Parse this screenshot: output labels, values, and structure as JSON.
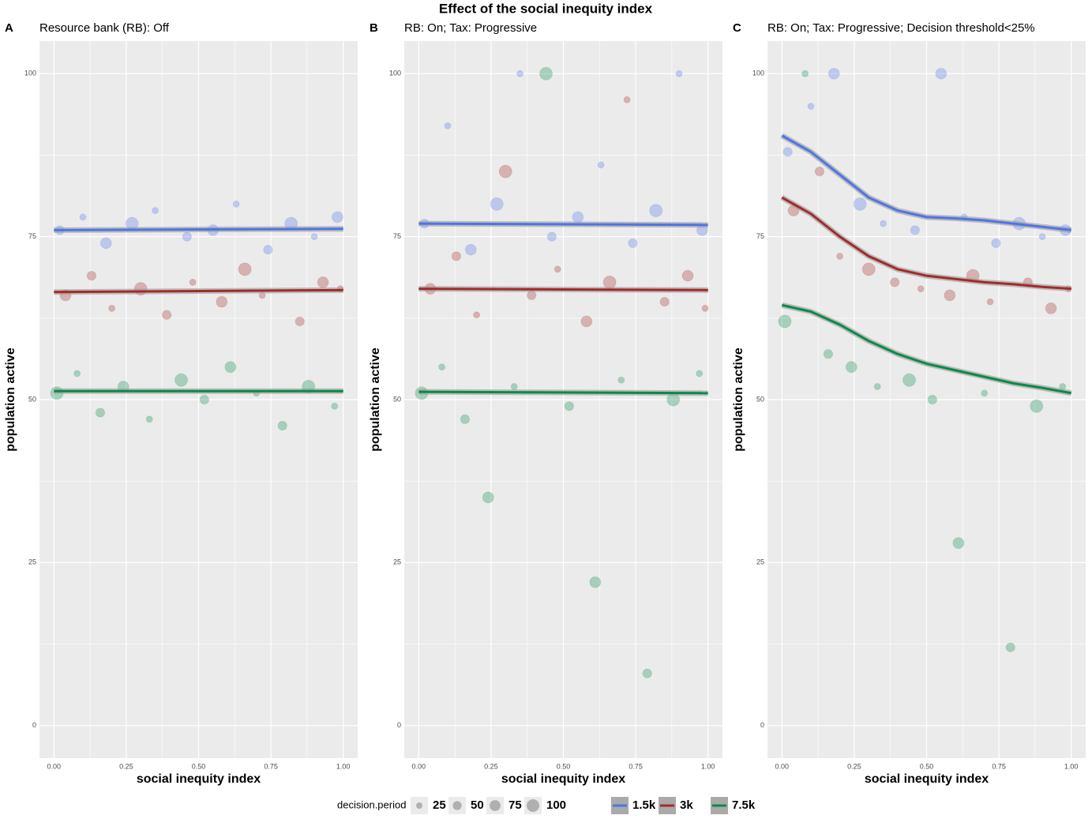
{
  "title": "Effect of the social inequity index",
  "legend": {
    "size_title": "decision.period",
    "sizes": [
      25,
      50,
      75,
      100
    ],
    "colors": [
      {
        "name": "1.5k",
        "color": "#4f74e8"
      },
      {
        "name": "3k",
        "color": "#a52a2a"
      },
      {
        "name": "7.5k",
        "color": "#0a8a48"
      }
    ]
  },
  "chart_data": [
    {
      "type": "scatter",
      "label": "A",
      "subtitle": "Resource bank (RB): Off",
      "xlabel": "social inequity index",
      "ylabel": "population active",
      "xlim": [
        -0.05,
        1.05
      ],
      "ylim": [
        -5,
        105
      ],
      "xticks": [
        {
          "value": 0,
          "label": "0.00"
        },
        {
          "value": 0.25,
          "label": "0.25"
        },
        {
          "value": 0.5,
          "label": "0.50"
        },
        {
          "value": 0.75,
          "label": "0.75"
        },
        {
          "value": 1,
          "label": "1.00"
        }
      ],
      "yticks": [
        0,
        25,
        50,
        75,
        100
      ],
      "grid": true,
      "series": [
        {
          "color": "#4f74e8",
          "x": [
            0.02,
            0.1,
            0.18,
            0.27,
            0.35,
            0.46,
            0.55,
            0.63,
            0.74,
            0.82,
            0.9,
            0.98
          ],
          "y": [
            76,
            78,
            74,
            77,
            79,
            75,
            76,
            80,
            73,
            77,
            75,
            78
          ],
          "sizes": [
            50,
            25,
            75,
            100,
            25,
            50,
            75,
            25,
            50,
            100,
            25,
            75
          ],
          "fit_x": [
            0,
            1
          ],
          "fit_y": [
            76,
            76.2
          ]
        },
        {
          "color": "#a52a2a",
          "x": [
            0.04,
            0.13,
            0.2,
            0.3,
            0.39,
            0.48,
            0.58,
            0.66,
            0.72,
            0.85,
            0.93,
            0.99
          ],
          "y": [
            66,
            69,
            64,
            67,
            63,
            68,
            65,
            70,
            66,
            62,
            68,
            67
          ],
          "sizes": [
            75,
            50,
            25,
            100,
            50,
            25,
            75,
            100,
            25,
            50,
            75,
            25
          ],
          "fit_x": [
            0,
            1
          ],
          "fit_y": [
            66.5,
            66.8
          ]
        },
        {
          "color": "#0a8a48",
          "x": [
            0.01,
            0.08,
            0.16,
            0.24,
            0.33,
            0.44,
            0.52,
            0.61,
            0.7,
            0.79,
            0.88,
            0.97
          ],
          "y": [
            51,
            54,
            48,
            52,
            47,
            53,
            50,
            55,
            51,
            46,
            52,
            49
          ],
          "sizes": [
            100,
            25,
            50,
            75,
            25,
            100,
            50,
            75,
            25,
            50,
            100,
            25
          ],
          "fit_x": [
            0,
            1
          ],
          "fit_y": [
            51.3,
            51.3
          ]
        }
      ]
    },
    {
      "type": "scatter",
      "label": "B",
      "subtitle": "RB: On; Tax: Progressive",
      "xlabel": "social inequity index",
      "ylabel": "population active",
      "xlim": [
        -0.05,
        1.05
      ],
      "ylim": [
        -5,
        105
      ],
      "xticks": [
        {
          "value": 0,
          "label": "0.00"
        },
        {
          "value": 0.25,
          "label": "0.25"
        },
        {
          "value": 0.5,
          "label": "0.50"
        },
        {
          "value": 0.75,
          "label": "0.75"
        },
        {
          "value": 1,
          "label": "1.00"
        }
      ],
      "yticks": [
        0,
        25,
        50,
        75,
        100
      ],
      "grid": true,
      "series": [
        {
          "color": "#4f74e8",
          "x": [
            0.02,
            0.1,
            0.18,
            0.27,
            0.35,
            0.46,
            0.55,
            0.63,
            0.74,
            0.82,
            0.9,
            0.98
          ],
          "y": [
            77,
            92,
            73,
            80,
            100,
            75,
            78,
            86,
            74,
            79,
            100,
            76
          ],
          "sizes": [
            50,
            25,
            75,
            100,
            25,
            50,
            75,
            25,
            50,
            100,
            25,
            75
          ],
          "fit_x": [
            0,
            1
          ],
          "fit_y": [
            77,
            76.8
          ]
        },
        {
          "color": "#a52a2a",
          "x": [
            0.04,
            0.13,
            0.2,
            0.3,
            0.39,
            0.48,
            0.58,
            0.66,
            0.72,
            0.85,
            0.93,
            0.99
          ],
          "y": [
            67,
            72,
            63,
            85,
            66,
            70,
            62,
            68,
            96,
            65,
            69,
            64
          ],
          "sizes": [
            75,
            50,
            25,
            100,
            50,
            25,
            75,
            100,
            25,
            50,
            75,
            25
          ],
          "fit_x": [
            0,
            1
          ],
          "fit_y": [
            67,
            66.8
          ]
        },
        {
          "color": "#0a8a48",
          "x": [
            0.01,
            0.08,
            0.16,
            0.24,
            0.33,
            0.44,
            0.52,
            0.61,
            0.7,
            0.79,
            0.88,
            0.97
          ],
          "y": [
            51,
            55,
            47,
            35,
            52,
            100,
            49,
            22,
            53,
            8,
            50,
            54
          ],
          "sizes": [
            100,
            25,
            50,
            75,
            25,
            100,
            50,
            75,
            25,
            50,
            100,
            25
          ],
          "fit_x": [
            0,
            1
          ],
          "fit_y": [
            51.2,
            51
          ]
        }
      ]
    },
    {
      "type": "scatter",
      "label": "C",
      "subtitle": "RB: On; Tax: Progressive; Decision threshold<25%",
      "xlabel": "social inequity index",
      "ylabel": "population active",
      "xlim": [
        -0.05,
        1.05
      ],
      "ylim": [
        -5,
        105
      ],
      "xticks": [
        {
          "value": 0,
          "label": "0.00"
        },
        {
          "value": 0.25,
          "label": "0.25"
        },
        {
          "value": 0.5,
          "label": "0.50"
        },
        {
          "value": 0.75,
          "label": "0.75"
        },
        {
          "value": 1,
          "label": "1.00"
        }
      ],
      "yticks": [
        0,
        25,
        50,
        75,
        100
      ],
      "grid": true,
      "series": [
        {
          "color": "#4f74e8",
          "x": [
            0.02,
            0.1,
            0.18,
            0.27,
            0.35,
            0.46,
            0.55,
            0.63,
            0.74,
            0.82,
            0.9,
            0.98
          ],
          "y": [
            88,
            95,
            100,
            80,
            77,
            76,
            100,
            78,
            74,
            77,
            75,
            76
          ],
          "sizes": [
            50,
            25,
            75,
            100,
            25,
            50,
            75,
            25,
            50,
            100,
            25,
            75
          ],
          "fit_x": [
            0,
            0.1,
            0.2,
            0.3,
            0.4,
            0.5,
            0.6,
            0.7,
            0.8,
            0.9,
            1
          ],
          "fit_y": [
            90.5,
            88,
            84.5,
            81,
            79,
            78,
            77.8,
            77.5,
            77,
            76.5,
            76
          ]
        },
        {
          "color": "#a52a2a",
          "x": [
            0.04,
            0.13,
            0.2,
            0.3,
            0.39,
            0.48,
            0.58,
            0.66,
            0.72,
            0.85,
            0.93,
            0.99
          ],
          "y": [
            79,
            85,
            72,
            70,
            68,
            67,
            66,
            69,
            65,
            68,
            64,
            67
          ],
          "sizes": [
            75,
            50,
            25,
            100,
            50,
            25,
            75,
            100,
            25,
            50,
            75,
            25
          ],
          "fit_x": [
            0,
            0.1,
            0.2,
            0.3,
            0.4,
            0.5,
            0.6,
            0.7,
            0.8,
            0.9,
            1
          ],
          "fit_y": [
            81,
            78.5,
            75,
            72,
            70,
            69,
            68.5,
            68,
            67.7,
            67.3,
            67
          ]
        },
        {
          "color": "#0a8a48",
          "x": [
            0.01,
            0.08,
            0.16,
            0.24,
            0.33,
            0.44,
            0.52,
            0.61,
            0.7,
            0.79,
            0.88,
            0.97
          ],
          "y": [
            62,
            100,
            57,
            55,
            52,
            53,
            50,
            28,
            51,
            12,
            49,
            52
          ],
          "sizes": [
            100,
            25,
            50,
            75,
            25,
            100,
            50,
            75,
            25,
            50,
            100,
            25
          ],
          "fit_x": [
            0,
            0.1,
            0.2,
            0.3,
            0.4,
            0.5,
            0.6,
            0.7,
            0.8,
            0.9,
            1
          ],
          "fit_y": [
            64.5,
            63.5,
            61.5,
            59,
            57,
            55.5,
            54.5,
            53.5,
            52.5,
            51.8,
            51
          ]
        }
      ]
    }
  ]
}
